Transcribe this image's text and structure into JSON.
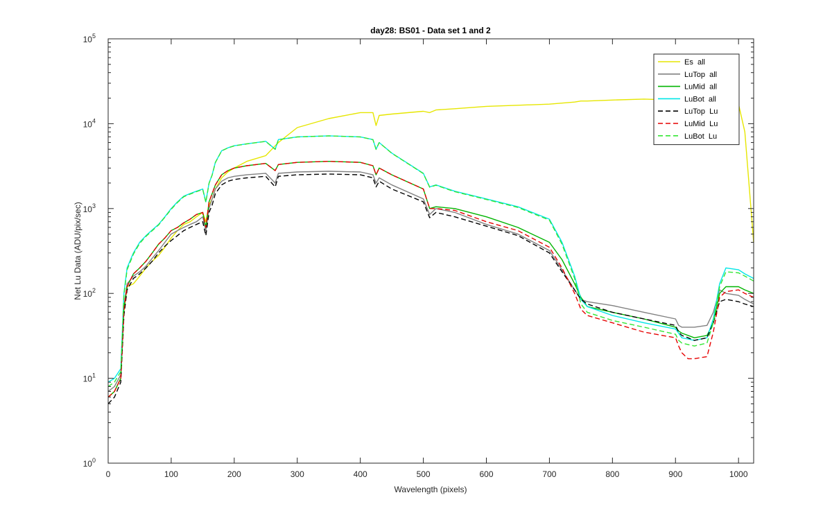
{
  "chart_data": {
    "type": "line",
    "title": "day28: BS01 - Data set 1 and 2",
    "xlabel": "Wavelength (pixels)",
    "ylabel": "Net Lu Data (ADU/pix/sec)",
    "xlim": [
      0,
      1024
    ],
    "ylim": [
      1,
      100000
    ],
    "yscale": "log",
    "xticks": [
      "0",
      "100",
      "200",
      "300",
      "400",
      "500",
      "600",
      "700",
      "800",
      "900",
      "1000"
    ],
    "yticks": [
      {
        "base": "10",
        "exp": "0"
      },
      {
        "base": "10",
        "exp": "1"
      },
      {
        "base": "10",
        "exp": "2"
      },
      {
        "base": "10",
        "exp": "3"
      },
      {
        "base": "10",
        "exp": "4"
      },
      {
        "base": "10",
        "exp": "5"
      }
    ],
    "grid": false,
    "legend_position": "top-right",
    "x": [
      0,
      10,
      20,
      25,
      30,
      40,
      50,
      60,
      70,
      80,
      90,
      100,
      110,
      120,
      130,
      140,
      150,
      155,
      160,
      165,
      170,
      180,
      190,
      200,
      220,
      250,
      265,
      270,
      300,
      350,
      400,
      420,
      425,
      430,
      450,
      500,
      510,
      520,
      550,
      600,
      650,
      700,
      720,
      740,
      750,
      760,
      800,
      850,
      900,
      905,
      910,
      920,
      930,
      950,
      960,
      970,
      980,
      1000,
      1010,
      1024
    ],
    "series": [
      {
        "name": "Es  all",
        "color": "#e6e600",
        "dash": "solid",
        "values": [
          6,
          7,
          10,
          60,
          120,
          130,
          160,
          200,
          240,
          280,
          350,
          450,
          550,
          650,
          700,
          800,
          900,
          700,
          1100,
          1300,
          1700,
          2300,
          2700,
          3000,
          3600,
          4200,
          5500,
          6000,
          9000,
          11500,
          13500,
          13500,
          9500,
          12500,
          13000,
          14000,
          13500,
          14500,
          15000,
          16000,
          16500,
          17000,
          17500,
          18000,
          18500,
          18500,
          19000,
          19500,
          19000,
          19500,
          20000,
          20000,
          20000,
          20500,
          20500,
          20500,
          19500,
          17000,
          8000,
          400
        ]
      },
      {
        "name": "LuTop  all",
        "color": "#808080",
        "dash": "solid",
        "values": [
          7,
          8,
          11,
          70,
          130,
          160,
          180,
          210,
          260,
          320,
          400,
          500,
          550,
          600,
          650,
          700,
          800,
          550,
          1000,
          1300,
          1700,
          2100,
          2300,
          2400,
          2500,
          2600,
          2000,
          2600,
          2700,
          2750,
          2700,
          2500,
          2000,
          2300,
          1900,
          1300,
          850,
          1000,
          900,
          650,
          500,
          320,
          190,
          110,
          85,
          80,
          72,
          60,
          50,
          42,
          40,
          40,
          40,
          42,
          60,
          110,
          100,
          95,
          85,
          75
        ]
      },
      {
        "name": "LuMid  all",
        "color": "#00b400",
        "dash": "solid",
        "values": [
          6,
          7,
          10,
          65,
          120,
          170,
          200,
          240,
          300,
          380,
          450,
          550,
          600,
          680,
          750,
          850,
          900,
          600,
          1200,
          1500,
          1900,
          2500,
          2800,
          3000,
          3200,
          3400,
          2800,
          3300,
          3500,
          3600,
          3500,
          3200,
          2500,
          3000,
          2500,
          1700,
          1000,
          1050,
          1000,
          800,
          600,
          400,
          250,
          130,
          90,
          70,
          60,
          50,
          40,
          36,
          34,
          32,
          30,
          32,
          45,
          100,
          120,
          120,
          110,
          100
        ]
      },
      {
        "name": "LuBot  all",
        "color": "#00e6e6",
        "dash": "solid",
        "values": [
          9,
          10,
          13,
          100,
          200,
          300,
          400,
          480,
          560,
          650,
          800,
          1000,
          1200,
          1400,
          1500,
          1600,
          1700,
          1200,
          2000,
          2500,
          3500,
          4800,
          5200,
          5500,
          5800,
          6200,
          5000,
          6500,
          7000,
          7200,
          7000,
          6500,
          5000,
          6000,
          4500,
          2600,
          1800,
          1900,
          1600,
          1300,
          1050,
          750,
          400,
          160,
          85,
          70,
          55,
          45,
          38,
          34,
          30,
          29,
          28,
          30,
          50,
          130,
          200,
          190,
          170,
          150
        ]
      },
      {
        "name": "LuTop  Lu",
        "color": "#000000",
        "dash": "dashed",
        "values": [
          5,
          6,
          9,
          55,
          110,
          150,
          170,
          200,
          240,
          300,
          360,
          420,
          480,
          550,
          600,
          650,
          700,
          480,
          900,
          1100,
          1500,
          1900,
          2100,
          2200,
          2300,
          2400,
          1800,
          2400,
          2500,
          2550,
          2500,
          2300,
          1800,
          2100,
          1700,
          1200,
          780,
          900,
          800,
          620,
          480,
          300,
          180,
          110,
          85,
          75,
          60,
          50,
          42,
          35,
          32,
          30,
          28,
          30,
          45,
          80,
          85,
          80,
          75,
          70
        ]
      },
      {
        "name": "LuMid  Lu",
        "color": "#e60000",
        "dash": "dashed",
        "values": [
          6,
          7,
          10,
          65,
          120,
          170,
          200,
          240,
          300,
          380,
          450,
          550,
          600,
          680,
          750,
          850,
          900,
          600,
          1200,
          1500,
          1900,
          2500,
          2800,
          3000,
          3200,
          3400,
          2800,
          3300,
          3500,
          3600,
          3500,
          3200,
          2500,
          3000,
          2500,
          1700,
          1000,
          1000,
          950,
          700,
          550,
          350,
          200,
          100,
          65,
          55,
          45,
          35,
          30,
          24,
          20,
          17,
          17,
          18,
          35,
          90,
          105,
          110,
          100,
          90
        ]
      },
      {
        "name": "LuBot  Lu",
        "color": "#33e633",
        "dash": "dashed",
        "values": [
          8,
          9,
          12,
          95,
          190,
          290,
          390,
          470,
          550,
          640,
          790,
          980,
          1180,
          1380,
          1480,
          1580,
          1680,
          1180,
          1980,
          2480,
          3480,
          4780,
          5180,
          5480,
          5780,
          6180,
          4980,
          6480,
          6980,
          7180,
          6980,
          6480,
          4980,
          5980,
          4480,
          2580,
          1780,
          1880,
          1580,
          1280,
          1030,
          730,
          380,
          150,
          75,
          60,
          48,
          40,
          33,
          28,
          26,
          25,
          24,
          26,
          45,
          120,
          180,
          175,
          160,
          140
        ]
      }
    ]
  }
}
